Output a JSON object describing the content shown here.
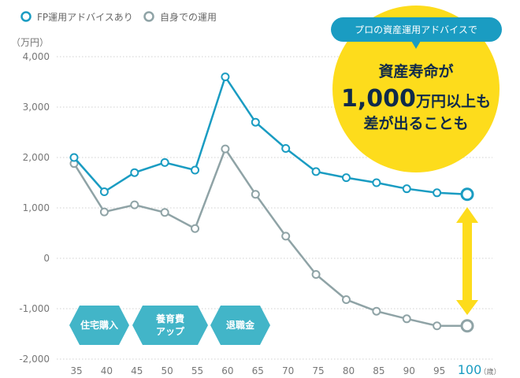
{
  "chart_data": {
    "type": "line",
    "x": [
      35,
      40,
      45,
      50,
      55,
      60,
      65,
      70,
      75,
      80,
      85,
      90,
      95,
      100
    ],
    "x_tick_labels": [
      "35",
      "40",
      "45",
      "50",
      "55",
      "60",
      "65",
      "70",
      "75",
      "80",
      "85",
      "90",
      "95",
      "100"
    ],
    "x_unit": "（歳）",
    "y_unit": "（万円）",
    "ylim": [
      -2000,
      4000
    ],
    "y_ticks": [
      4000,
      3000,
      2000,
      1000,
      0,
      -1000,
      -2000
    ],
    "y_tick_labels": [
      "4,000",
      "3,000",
      "2,000",
      "1,000",
      "0",
      "-1,000",
      "-2,000"
    ],
    "grid": true,
    "legend_position": "top-left",
    "series": [
      {
        "name": "FP運用アドバイスあり",
        "color": "#1a9cc2",
        "values": [
          2000,
          1320,
          1700,
          1900,
          1750,
          3600,
          2700,
          2180,
          1720,
          1600,
          1500,
          1380,
          1300,
          1270
        ]
      },
      {
        "name": "自身での運用",
        "color": "#8fa3a6",
        "values": [
          1880,
          920,
          1060,
          910,
          590,
          2170,
          1270,
          440,
          -320,
          -820,
          -1050,
          -1200,
          -1340,
          -1340
        ]
      }
    ],
    "events": [
      {
        "label_lines": [
          "住宅購入"
        ]
      },
      {
        "label_lines": [
          "養育費",
          "アップ"
        ]
      },
      {
        "label_lines": [
          "退職金"
        ]
      }
    ],
    "event_color": "#42b5c8",
    "callout": {
      "banner": "プロの資産運用アドバイスで",
      "line1": "資産寿命が",
      "line2_number": "1,000",
      "line2_rest": "万円以上も",
      "line3": "差が出ることも",
      "banner_color": "#1a9cc2",
      "bubble_color": "#fddc1c",
      "arrow_color": "#fddc1c"
    }
  }
}
